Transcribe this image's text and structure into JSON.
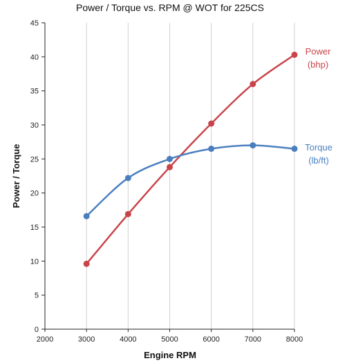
{
  "chart_data": {
    "type": "line",
    "title": "Power / Torque vs. RPM @ WOT for 225CS",
    "xlabel": "Engine RPM",
    "ylabel": "Power / Torque",
    "xlim": [
      2000,
      8000
    ],
    "ylim": [
      0,
      45
    ],
    "x_ticks": [
      "2000",
      "3000",
      "4000",
      "5000",
      "6000",
      "7000",
      "8000"
    ],
    "y_ticks": [
      "0",
      "5",
      "10",
      "15",
      "20",
      "25",
      "30",
      "35",
      "40",
      "45"
    ],
    "grid": "vertical",
    "x": [
      3000,
      4000,
      5000,
      6000,
      7000,
      8000
    ],
    "series": [
      {
        "name_line1": "Power",
        "name_line2": "(bhp)",
        "color": "#c9444a",
        "values": [
          9.6,
          16.9,
          23.8,
          30.2,
          36.0,
          40.3
        ]
      },
      {
        "name_line1": "Torque",
        "name_line2": "(lb/ft)",
        "color": "#4a7fbf",
        "values": [
          16.6,
          22.2,
          25.0,
          26.5,
          27.0,
          26.5
        ]
      }
    ]
  }
}
